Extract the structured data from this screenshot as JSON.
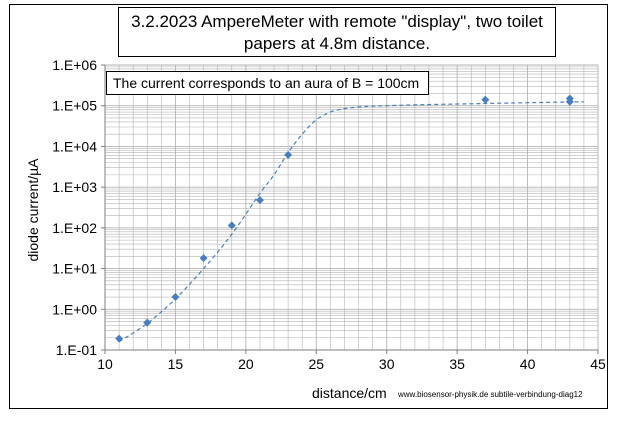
{
  "chart_data": {
    "type": "scatter",
    "title": "3.2.2023 AmpereMeter with remote \"display\", two toilet papers at 4.8m distance.",
    "annotation": "The current corresponds to an aura of B = 100cm",
    "xlabel": "distance/cm",
    "ylabel": "diode current/µA",
    "credit": "www.biosensor-physik.de subtile-verbindung-diag12",
    "xlim": [
      10,
      45
    ],
    "ylim": [
      0.1,
      1000000
    ],
    "y_scale": "log",
    "grid": true,
    "x_ticks": [
      10,
      15,
      20,
      25,
      30,
      35,
      40,
      45
    ],
    "y_ticks": [
      {
        "value": 0.1,
        "label": "1.E-01"
      },
      {
        "value": 1,
        "label": "1.E+00"
      },
      {
        "value": 10,
        "label": "1.E+01"
      },
      {
        "value": 100,
        "label": "1.E+02"
      },
      {
        "value": 1000,
        "label": "1.E+03"
      },
      {
        "value": 10000,
        "label": "1.E+04"
      },
      {
        "value": 100000,
        "label": "1.E+05"
      },
      {
        "value": 1000000,
        "label": "1.E+06"
      }
    ],
    "points": [
      {
        "x": 11,
        "y": 0.19
      },
      {
        "x": 13,
        "y": 0.47
      },
      {
        "x": 15,
        "y": 2.0
      },
      {
        "x": 17,
        "y": 18
      },
      {
        "x": 19,
        "y": 115
      },
      {
        "x": 21,
        "y": 480
      },
      {
        "x": 23,
        "y": 6200
      },
      {
        "x": 37,
        "y": 140000
      },
      {
        "x": 43,
        "y": 150000
      },
      {
        "x": 43,
        "y": 125000
      }
    ],
    "fit_curve": {
      "style": "dashed",
      "x": [
        11,
        13,
        15,
        17,
        19,
        21,
        22,
        23,
        24,
        25,
        26,
        27,
        28,
        29,
        30,
        32,
        35,
        38,
        41,
        44
      ],
      "y": [
        0.16,
        0.45,
        1.8,
        10,
        70,
        700,
        2000,
        7000,
        20000,
        45000,
        70000,
        85000,
        93000,
        98000,
        100000,
        105000,
        110000,
        115000,
        120000,
        125000
      ]
    },
    "colors": {
      "marker": "#4a7ebb",
      "curve": "#4a7ebb",
      "grid": "#b3b3b3",
      "axis": "#7f7f7f"
    }
  }
}
